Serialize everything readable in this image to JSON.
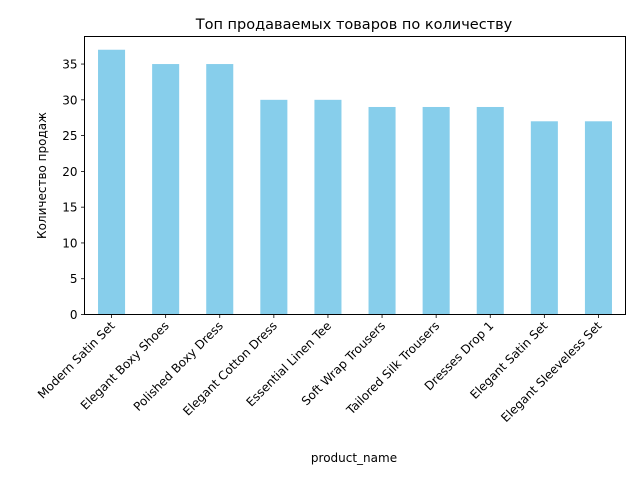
{
  "chart_data": {
    "type": "bar",
    "title": "Топ продаваемых товаров по количеству",
    "xlabel": "product_name",
    "ylabel": "Количество продаж",
    "categories": [
      "Modern Satin Set",
      "Elegant Boxy Shoes",
      "Polished Boxy Dress",
      "Elegant Cotton Dress",
      "Essential Linen Tee",
      "Soft Wrap Trousers",
      "Tailored Silk Trousers",
      "Dresses Drop 1",
      "Elegant Satin Set",
      "Elegant Sleeveless Set"
    ],
    "values": [
      37,
      35,
      35,
      30,
      30,
      29,
      29,
      29,
      27,
      27
    ],
    "ylim": [
      0,
      38.85
    ],
    "yticks": [
      0,
      5,
      10,
      15,
      20,
      25,
      30,
      35
    ],
    "grid": false,
    "legend": "none",
    "bar_color": "#87ceeb"
  }
}
